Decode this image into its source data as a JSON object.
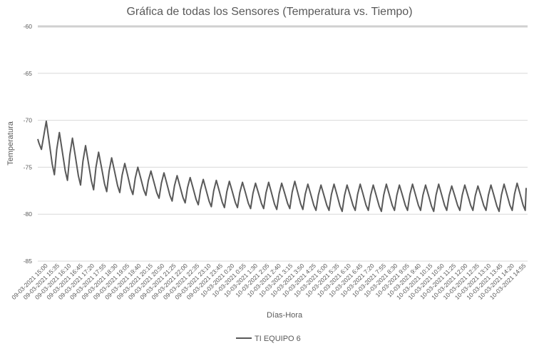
{
  "chart_data": {
    "type": "line",
    "title": "Gráfica de todas los Sensores (Temperatura vs. Tiempo)",
    "xlabel": "Días-Hora",
    "ylabel": "Temperatura",
    "ylim": [
      -85,
      -60
    ],
    "yticks": [
      -60,
      -65,
      -70,
      -75,
      -80,
      -85
    ],
    "grid": "horizontal",
    "legend": "bottom",
    "line_color": "#595959",
    "grid_color": "#d9d9d9",
    "x_tick_labels": [
      "09-03-2021 15:00",
      "09-03-2021 15:35",
      "09-03-2021 16:10",
      "09-03-2021 16:45",
      "09-03-2021 17:20",
      "09-03-2021 17:55",
      "09-03-2021 18:30",
      "09-03-2021 19:05",
      "09-03-2021 19:40",
      "09-03-2021 20:15",
      "09-03-2021 20:50",
      "09-03-2021 21:25",
      "09-03-2021 22:00",
      "09-03-2021 22:35",
      "09-03-2021 23:10",
      "09-03-2021 23:45",
      "10-03-2021 0:20",
      "10-03-2021 0:55",
      "10-03-2021 1:30",
      "10-03-2021 2:05",
      "10-03-2021 2:40",
      "10-03-2021 3:15",
      "10-03-2021 3:50",
      "10-03-2021 4:25",
      "10-03-2021 5:00",
      "10-03-2021 5:35",
      "10-03-2021 6:10",
      "10-03-2021 6:45",
      "10-03-2021 7:20",
      "10-03-2021 7:55",
      "10-03-2021 8:30",
      "10-03-2021 9:05",
      "10-03-2021 9:40",
      "10-03-2021 10:15",
      "10-03-2021 10:50",
      "10-03-2021 11:25",
      "10-03-2021 12:00",
      "10-03-2021 12:35",
      "10-03-2021 13:10",
      "10-03-2021 13:45",
      "10-03-2021 14:20",
      "10-03-2021 14:55"
    ],
    "series": [
      {
        "name": "TI EQUIPO 6",
        "cycles": [
          {
            "peak": -70.1,
            "trough": -73.1
          },
          {
            "peak": -71.3,
            "trough": -75.8
          },
          {
            "peak": -71.9,
            "trough": -76.4
          },
          {
            "peak": -72.7,
            "trough": -76.9
          },
          {
            "peak": -73.4,
            "trough": -77.4
          },
          {
            "peak": -74.0,
            "trough": -77.6
          },
          {
            "peak": -74.6,
            "trough": -77.7
          },
          {
            "peak": -75.0,
            "trough": -77.9
          },
          {
            "peak": -75.4,
            "trough": -78.0
          },
          {
            "peak": -75.6,
            "trough": -78.3
          },
          {
            "peak": -75.9,
            "trough": -78.6
          },
          {
            "peak": -76.1,
            "trough": -78.8
          },
          {
            "peak": -76.3,
            "trough": -79.0
          },
          {
            "peak": -76.4,
            "trough": -79.2
          },
          {
            "peak": -76.5,
            "trough": -79.3
          },
          {
            "peak": -76.6,
            "trough": -79.3
          },
          {
            "peak": -76.7,
            "trough": -79.4
          },
          {
            "peak": -76.6,
            "trough": -79.4
          },
          {
            "peak": -76.7,
            "trough": -79.5
          },
          {
            "peak": -76.5,
            "trough": -79.4
          },
          {
            "peak": -76.8,
            "trough": -79.5
          },
          {
            "peak": -76.9,
            "trough": -79.6
          },
          {
            "peak": -76.8,
            "trough": -79.6
          },
          {
            "peak": -76.9,
            "trough": -79.7
          },
          {
            "peak": -76.8,
            "trough": -79.6
          },
          {
            "peak": -76.9,
            "trough": -79.6
          },
          {
            "peak": -76.8,
            "trough": -79.7
          },
          {
            "peak": -76.9,
            "trough": -79.6
          },
          {
            "peak": -76.8,
            "trough": -79.6
          },
          {
            "peak": -76.9,
            "trough": -79.6
          },
          {
            "peak": -76.8,
            "trough": -79.7
          },
          {
            "peak": -77.0,
            "trough": -79.6
          },
          {
            "peak": -76.9,
            "trough": -79.6
          },
          {
            "peak": -77.0,
            "trough": -79.6
          },
          {
            "peak": -76.9,
            "trough": -79.6
          },
          {
            "peak": -76.8,
            "trough": -79.7
          },
          {
            "peak": -76.7,
            "trough": -79.6
          }
        ],
        "start_value": -72.0,
        "end_value": -77.2
      }
    ]
  }
}
